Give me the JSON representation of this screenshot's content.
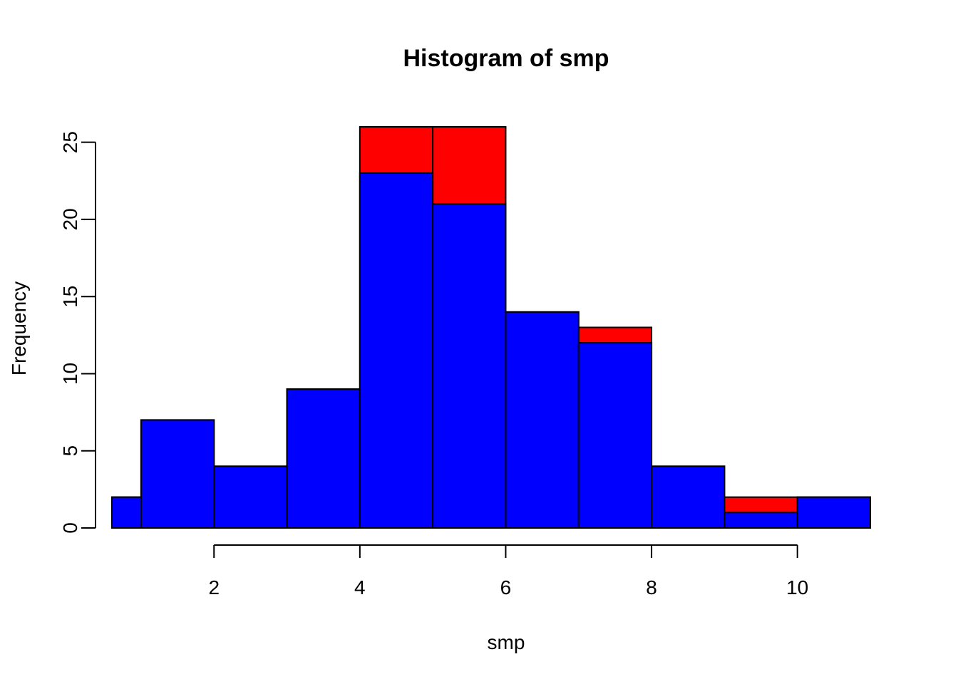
{
  "chart_data": {
    "type": "bar",
    "title": "Histogram of smp",
    "xlabel": "smp",
    "ylabel": "Frequency",
    "xlim": [
      0.6,
      11
    ],
    "ylim": [
      0,
      26
    ],
    "x_ticks": [
      2,
      4,
      6,
      8,
      10
    ],
    "y_ticks": [
      0,
      5,
      10,
      15,
      20,
      25
    ],
    "grid": false,
    "legend": "none",
    "colors": {
      "back_series": "#ff0000",
      "front_series": "#0000ff",
      "stroke": "#000000"
    },
    "series": [
      {
        "name": "red",
        "color": "#ff0000",
        "bins": [
          {
            "left": 0.6,
            "right": 1,
            "value": 2
          },
          {
            "left": 1,
            "right": 2,
            "value": 7
          },
          {
            "left": 2,
            "right": 3,
            "value": 4
          },
          {
            "left": 3,
            "right": 4,
            "value": 9
          },
          {
            "left": 4,
            "right": 5,
            "value": 26
          },
          {
            "left": 5,
            "right": 6,
            "value": 26
          },
          {
            "left": 6,
            "right": 7,
            "value": 14
          },
          {
            "left": 7,
            "right": 8,
            "value": 13
          },
          {
            "left": 8,
            "right": 9,
            "value": 4
          },
          {
            "left": 9,
            "right": 10,
            "value": 2
          },
          {
            "left": 10,
            "right": 11,
            "value": 2
          }
        ]
      },
      {
        "name": "blue",
        "color": "#0000ff",
        "bins": [
          {
            "left": 0.6,
            "right": 1,
            "value": 2
          },
          {
            "left": 1,
            "right": 2,
            "value": 7
          },
          {
            "left": 2,
            "right": 3,
            "value": 4
          },
          {
            "left": 3,
            "right": 4,
            "value": 9
          },
          {
            "left": 4,
            "right": 5,
            "value": 23
          },
          {
            "left": 5,
            "right": 6,
            "value": 21
          },
          {
            "left": 6,
            "right": 7,
            "value": 14
          },
          {
            "left": 7,
            "right": 8,
            "value": 12
          },
          {
            "left": 8,
            "right": 9,
            "value": 4
          },
          {
            "left": 9,
            "right": 10,
            "value": 1
          },
          {
            "left": 10,
            "right": 11,
            "value": 2
          }
        ]
      }
    ]
  }
}
